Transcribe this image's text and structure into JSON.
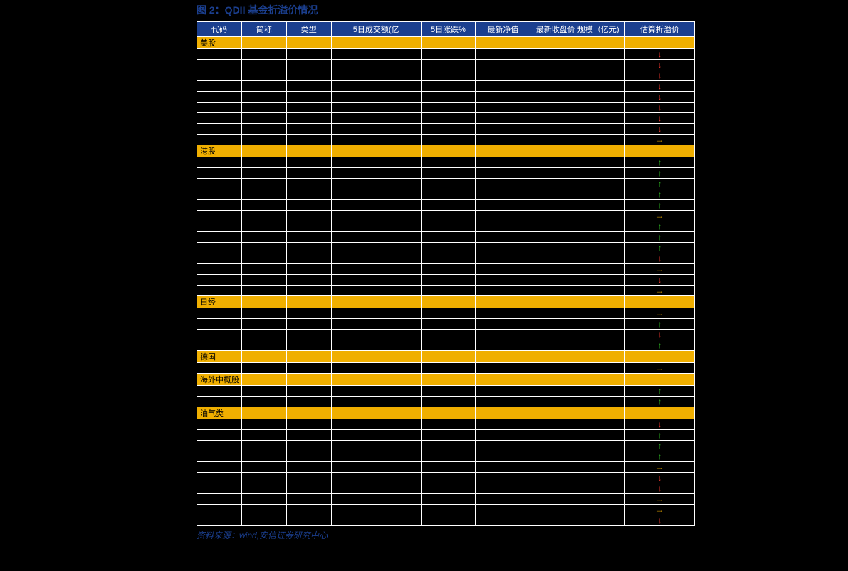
{
  "figure": {
    "title": "图 2：QDII 基金折溢价情况",
    "source": "资料来源：wind,安信证券研究中心",
    "colors": {
      "header_bg": "#1b3f8f",
      "header_text": "#ffffff",
      "section_bg": "#f0af00",
      "section_text": "#000000",
      "cell_bg": "#000000",
      "border": "#ffffff",
      "title_color": "#1b3f8f",
      "source_color": "#1b3f8f",
      "arrow_down": "#d8322a",
      "arrow_up": "#2aa81f",
      "arrow_right": "#f0af00"
    },
    "column_widths_pct": [
      9,
      9,
      9,
      18,
      11,
      11,
      19,
      14
    ],
    "headers": [
      "代码",
      "简称",
      "类型",
      "5日成交额(亿",
      "5日涨跌%",
      "最新净值",
      "最新收盘价 规模（亿元)",
      "估算折溢价"
    ],
    "sections": [
      {
        "label": "美股",
        "rows": [
          {
            "arrow": "down"
          },
          {
            "arrow": "down"
          },
          {
            "arrow": "down"
          },
          {
            "arrow": "down"
          },
          {
            "arrow": "down"
          },
          {
            "arrow": "down"
          },
          {
            "arrow": "down"
          },
          {
            "arrow": "down"
          },
          {
            "arrow": "right"
          }
        ]
      },
      {
        "label": "港股",
        "rows": [
          {
            "arrow": "up"
          },
          {
            "arrow": "up"
          },
          {
            "arrow": "up"
          },
          {
            "arrow": "up"
          },
          {
            "arrow": "up"
          },
          {
            "arrow": "right"
          },
          {
            "arrow": "up"
          },
          {
            "arrow": "up"
          },
          {
            "arrow": "up"
          },
          {
            "arrow": "down"
          },
          {
            "arrow": "right"
          },
          {
            "arrow": "down"
          },
          {
            "arrow": "right"
          }
        ]
      },
      {
        "label": "日经",
        "rows": [
          {
            "arrow": "right"
          },
          {
            "arrow": "up"
          },
          {
            "arrow": "down"
          },
          {
            "arrow": "up"
          }
        ]
      },
      {
        "label": "德国",
        "rows": [
          {
            "arrow": "right"
          }
        ]
      },
      {
        "label": "海外中概股",
        "rows": [
          {
            "arrow": "up"
          },
          {
            "arrow": "up"
          }
        ]
      },
      {
        "label": "油气类",
        "rows": [
          {
            "arrow": "down"
          },
          {
            "arrow": "up"
          },
          {
            "arrow": "up"
          },
          {
            "arrow": "up"
          },
          {
            "arrow": "right"
          },
          {
            "arrow": "down"
          },
          {
            "arrow": "down"
          },
          {
            "arrow": "right"
          },
          {
            "arrow": "right"
          },
          {
            "arrow": "down"
          }
        ]
      }
    ]
  }
}
